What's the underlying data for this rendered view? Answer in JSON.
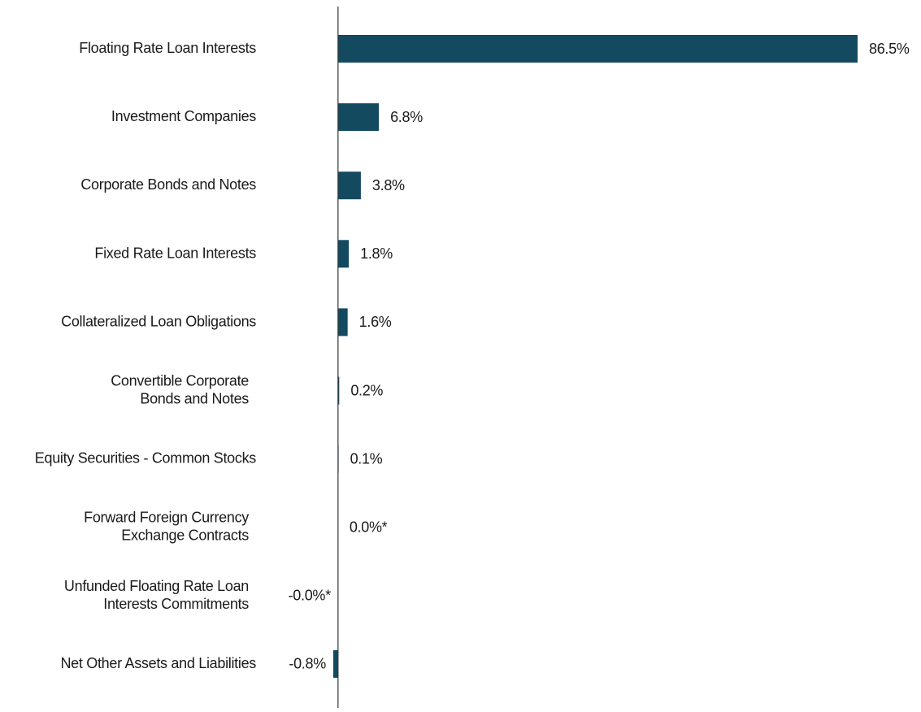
{
  "chart_data": {
    "type": "bar",
    "orientation": "horizontal",
    "categories": [
      "Floating Rate Loan Interests",
      "Investment Companies",
      "Corporate Bonds and Notes",
      "Fixed Rate Loan Interests",
      "Collateralized Loan Obligations",
      "Convertible Corporate\nBonds and Notes",
      "Equity Securities - Common Stocks",
      "Forward Foreign Currency\nExchange Contracts",
      "Unfunded Floating Rate Loan\nInterests Commitments",
      "Net Other Assets and Liabilities"
    ],
    "values": [
      86.5,
      6.8,
      3.8,
      1.8,
      1.6,
      0.2,
      0.1,
      0.0,
      -0.0,
      -0.8
    ],
    "value_labels": [
      "86.5%",
      "6.8%",
      "3.8%",
      "1.8%",
      "1.6%",
      "0.2%",
      "0.1%",
      "0.0%*",
      "-0.0%*",
      "-0.8%"
    ],
    "color": "#134a60",
    "xlim": [
      -55.6,
      86.5
    ]
  }
}
